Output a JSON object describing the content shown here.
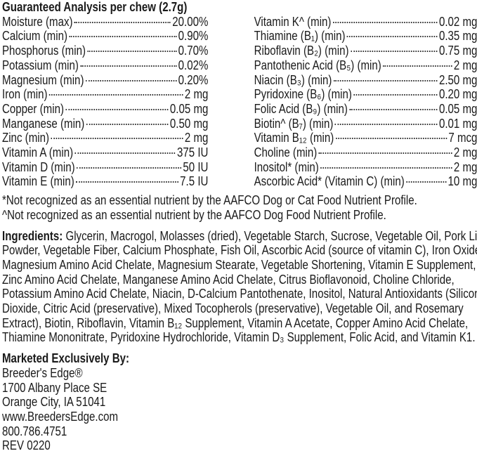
{
  "analysis": {
    "title": "Guaranteed Analysis per chew (2.7g)",
    "left": [
      {
        "label": "Moisture (max)",
        "value": "20.00%"
      },
      {
        "label": "Calcium (min)",
        "value": "0.90%"
      },
      {
        "label": "Phosphorus (min)",
        "value": "0.70%"
      },
      {
        "label": "Potassium (min)",
        "value": "0.02%"
      },
      {
        "label": "Magnesium (min)",
        "value": "0.20%"
      },
      {
        "label": "Iron (min)",
        "value": "2 mg"
      },
      {
        "label": "Copper (min)",
        "value": "0.05 mg"
      },
      {
        "label": "Manganese (min)",
        "value": "0.50 mg"
      },
      {
        "label": "Zinc (min)",
        "value": "2 mg"
      },
      {
        "label": "Vitamin A (min)",
        "value": "375 IU"
      },
      {
        "label": "Vitamin D (min)",
        "value": "50 IU"
      },
      {
        "label": "Vitamin E (min)",
        "value": "7.5 IU"
      }
    ],
    "right": [
      {
        "label": "Vitamin K^ (min)",
        "value": "0.02 mg"
      },
      {
        "label": "Thiamine (B₁) (min)",
        "value": "0.35 mg"
      },
      {
        "label": "Riboflavin (B₂) (min)",
        "value": "0.75 mg"
      },
      {
        "label": "Pantothenic Acid (B₅) (min)",
        "value": "2 mg"
      },
      {
        "label": "Niacin (B₃) (min)",
        "value": "2.50 mg"
      },
      {
        "label": "Pyridoxine (B₆) (min)",
        "value": "0.20 mg"
      },
      {
        "label": "Folic Acid (B₉) (min)",
        "value": "0.05 mg"
      },
      {
        "label": "Biotin^ (B₇) (min)",
        "value": "0.01 mg"
      },
      {
        "label": "Vitamin B₁₂ (min)",
        "value": "7 mcg"
      },
      {
        "label": "Choline (min)",
        "value": "2 mg"
      },
      {
        "label": "Inositol* (min)",
        "value": "2 mg"
      },
      {
        "label": "Ascorbic Acid* (Vitamin C) (min)",
        "value": "10 mg"
      }
    ]
  },
  "footnotes": [
    "*Not recognized as an essential nutrient by the AAFCO Dog or Cat Food Nutrient Profile.",
    "^Not recognized as an essential nutrient by the AAFCO Dog Food Nutrient Profile."
  ],
  "ingredients": {
    "heading": "Ingredients:",
    "lines": [
      " Glycerin, Macrogol, Molasses (dried), Vegetable Starch, Sucrose, Vegetable Oil, Pork Liver",
      "Powder, Vegetable Fiber, Calcium Phosphate, Fish Oil, Ascorbic Acid (source of vitamin C), Iron Oxide,",
      "Magnesium Amino Acid Chelate, Magnesium Stearate, Vegetable Shortening, Vitamin E Supplement,",
      "Zinc Amino Acid Chelate, Manganese Amino Acid Chelate, Citrus Bioflavonoid, Choline Chloride,",
      "Potassium Amino Acid Chelate, Niacin, D-Calcium Pantothenate, Inositol, Natural Antioxidants (Silicon",
      "Dioxide, Citric Acid (preservative), Mixed Tocopherols (preservative), Vegetable Oil, and Rosemary",
      "Extract), Biotin, Riboflavin, Vitamin B₁₂ Supplement, Vitamin A Acetate, Copper Amino Acid Chelate,",
      "Thiamine Mononitrate, Pyridoxine Hydrochloride, Vitamin D₃ Supplement, Folic Acid, and Vitamin K1."
    ]
  },
  "marketer": {
    "heading": "Marketed Exclusively By:",
    "name": "Breeder's Edge®",
    "address1": "1700 Albany Place SE",
    "address2": "Orange City, IA 51041",
    "website": "www.BreedersEdge.com",
    "phone": "800.786.4751",
    "rev": "REV 0220"
  }
}
